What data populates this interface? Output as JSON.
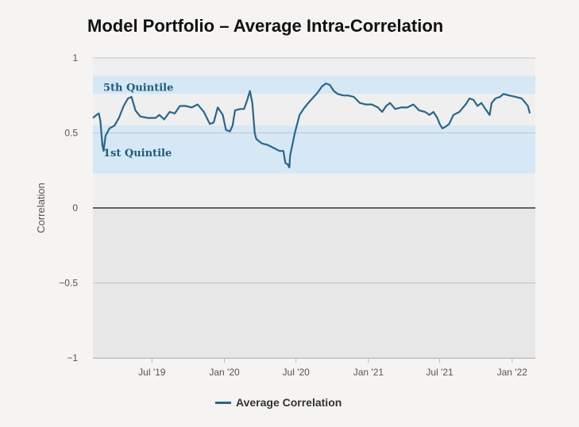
{
  "chart_data": {
    "type": "line",
    "title": "Model Portfolio – Average Intra-Correlation",
    "ylabel": "Correlation",
    "xlabel": "",
    "ylim": [
      -1,
      1
    ],
    "y_ticks": [
      {
        "value": 1,
        "label": "1"
      },
      {
        "value": 0.5,
        "label": "0.5"
      },
      {
        "value": 0,
        "label": "0"
      },
      {
        "value": -0.5,
        "label": "−0.5"
      },
      {
        "value": -1,
        "label": "−1"
      }
    ],
    "xlim": [
      "2019-02-01",
      "2022-03-01"
    ],
    "x_ticks": [
      {
        "value": "2019-07-01",
        "label": "Jul '19"
      },
      {
        "value": "2020-01-01",
        "label": "Jan '20"
      },
      {
        "value": "2020-07-01",
        "label": "Jul '20"
      },
      {
        "value": "2021-01-01",
        "label": "Jan '21"
      },
      {
        "value": "2021-07-01",
        "label": "Jul '21"
      },
      {
        "value": "2022-01-01",
        "label": "Jan '22"
      }
    ],
    "bands": [
      {
        "name": "5th Quintile",
        "from": 0.76,
        "to": 0.88,
        "color": "#d6e8f5"
      },
      {
        "name": "1st Quintile",
        "from": 0.23,
        "to": 0.55,
        "color": "#d6e8f5"
      }
    ],
    "grid": true,
    "legend": "bottom-center",
    "series": [
      {
        "name": "Average Correlation",
        "color": "#2a6688",
        "points": [
          [
            "2019-02-01",
            0.6
          ],
          [
            "2019-02-10",
            0.62
          ],
          [
            "2019-02-16",
            0.63
          ],
          [
            "2019-02-20",
            0.58
          ],
          [
            "2019-02-25",
            0.42
          ],
          [
            "2019-02-28",
            0.38
          ],
          [
            "2019-03-05",
            0.48
          ],
          [
            "2019-03-15",
            0.53
          ],
          [
            "2019-03-28",
            0.55
          ],
          [
            "2019-04-08",
            0.6
          ],
          [
            "2019-04-20",
            0.68
          ],
          [
            "2019-05-01",
            0.73
          ],
          [
            "2019-05-10",
            0.74
          ],
          [
            "2019-05-20",
            0.65
          ],
          [
            "2019-06-01",
            0.61
          ],
          [
            "2019-06-20",
            0.6
          ],
          [
            "2019-07-10",
            0.6
          ],
          [
            "2019-07-20",
            0.62
          ],
          [
            "2019-08-01",
            0.59
          ],
          [
            "2019-08-15",
            0.64
          ],
          [
            "2019-08-28",
            0.63
          ],
          [
            "2019-09-10",
            0.68
          ],
          [
            "2019-09-25",
            0.68
          ],
          [
            "2019-10-10",
            0.67
          ],
          [
            "2019-10-25",
            0.69
          ],
          [
            "2019-11-10",
            0.64
          ],
          [
            "2019-11-25",
            0.56
          ],
          [
            "2019-12-05",
            0.57
          ],
          [
            "2019-12-15",
            0.67
          ],
          [
            "2019-12-28",
            0.62
          ],
          [
            "2020-01-05",
            0.52
          ],
          [
            "2020-01-15",
            0.51
          ],
          [
            "2020-01-22",
            0.55
          ],
          [
            "2020-01-28",
            0.65
          ],
          [
            "2020-02-10",
            0.66
          ],
          [
            "2020-02-20",
            0.66
          ],
          [
            "2020-02-28",
            0.72
          ],
          [
            "2020-03-06",
            0.78
          ],
          [
            "2020-03-12",
            0.7
          ],
          [
            "2020-03-18",
            0.5
          ],
          [
            "2020-03-22",
            0.46
          ],
          [
            "2020-04-05",
            0.43
          ],
          [
            "2020-04-20",
            0.42
          ],
          [
            "2020-05-05",
            0.4
          ],
          [
            "2020-05-20",
            0.38
          ],
          [
            "2020-05-30",
            0.38
          ],
          [
            "2020-06-04",
            0.3
          ],
          [
            "2020-06-10",
            0.29
          ],
          [
            "2020-06-14",
            0.27
          ],
          [
            "2020-06-16",
            0.35
          ],
          [
            "2020-06-20",
            0.4
          ],
          [
            "2020-06-28",
            0.5
          ],
          [
            "2020-07-10",
            0.62
          ],
          [
            "2020-07-20",
            0.66
          ],
          [
            "2020-08-01",
            0.7
          ],
          [
            "2020-08-15",
            0.74
          ],
          [
            "2020-08-25",
            0.77
          ],
          [
            "2020-09-05",
            0.81
          ],
          [
            "2020-09-15",
            0.83
          ],
          [
            "2020-09-25",
            0.82
          ],
          [
            "2020-10-05",
            0.78
          ],
          [
            "2020-10-15",
            0.76
          ],
          [
            "2020-10-30",
            0.75
          ],
          [
            "2020-11-10",
            0.75
          ],
          [
            "2020-11-25",
            0.74
          ],
          [
            "2020-12-10",
            0.7
          ],
          [
            "2020-12-25",
            0.69
          ],
          [
            "2021-01-10",
            0.69
          ],
          [
            "2021-01-25",
            0.67
          ],
          [
            "2021-02-05",
            0.64
          ],
          [
            "2021-02-15",
            0.68
          ],
          [
            "2021-02-25",
            0.7
          ],
          [
            "2021-03-10",
            0.66
          ],
          [
            "2021-03-25",
            0.67
          ],
          [
            "2021-04-10",
            0.67
          ],
          [
            "2021-04-25",
            0.69
          ],
          [
            "2021-05-10",
            0.65
          ],
          [
            "2021-05-25",
            0.64
          ],
          [
            "2021-06-05",
            0.62
          ],
          [
            "2021-06-15",
            0.64
          ],
          [
            "2021-06-25",
            0.6
          ],
          [
            "2021-07-01",
            0.56
          ],
          [
            "2021-07-08",
            0.53
          ],
          [
            "2021-07-15",
            0.54
          ],
          [
            "2021-07-25",
            0.56
          ],
          [
            "2021-08-05",
            0.62
          ],
          [
            "2021-08-20",
            0.64
          ],
          [
            "2021-09-05",
            0.69
          ],
          [
            "2021-09-15",
            0.73
          ],
          [
            "2021-09-25",
            0.72
          ],
          [
            "2021-10-05",
            0.68
          ],
          [
            "2021-10-15",
            0.7
          ],
          [
            "2021-10-25",
            0.66
          ],
          [
            "2021-11-05",
            0.62
          ],
          [
            "2021-11-10",
            0.7
          ],
          [
            "2021-11-20",
            0.73
          ],
          [
            "2021-12-01",
            0.74
          ],
          [
            "2021-12-10",
            0.76
          ],
          [
            "2021-12-25",
            0.75
          ],
          [
            "2022-01-10",
            0.74
          ],
          [
            "2022-01-25",
            0.73
          ],
          [
            "2022-02-01",
            0.71
          ],
          [
            "2022-02-10",
            0.68
          ],
          [
            "2022-02-15",
            0.63
          ]
        ]
      }
    ]
  }
}
